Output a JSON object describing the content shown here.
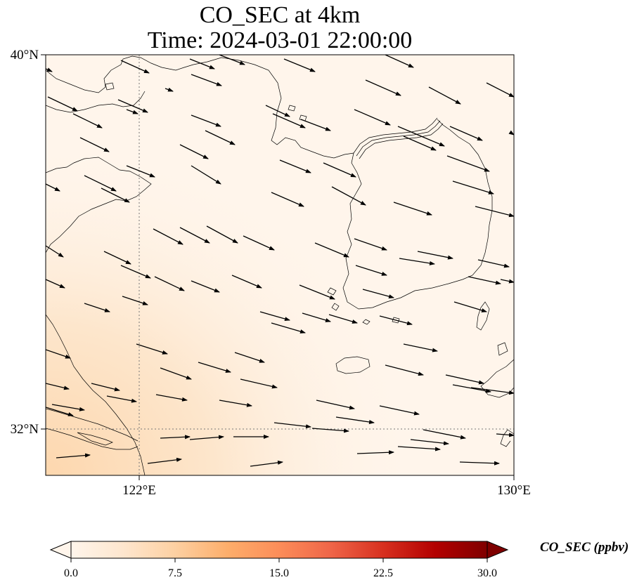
{
  "title": {
    "line1": "CO_SEC at 4km",
    "line2": "Time: 2024-03-01 22:00:00"
  },
  "map": {
    "lat_labels": [
      "40°N",
      "32°N"
    ],
    "lon_labels": [
      "122°E",
      "130°E"
    ],
    "extent": {
      "lon_min": 120,
      "lon_max": 130,
      "lat_min": 31,
      "lat_max": 40
    },
    "gridlines": {
      "lon": [
        122
      ],
      "lat": [
        32
      ],
      "style": "dotted"
    },
    "coastline_color": "#000000",
    "field_colors": [
      "#fff5eb",
      "#fde6cc",
      "#fdd7ae"
    ]
  },
  "colorbar": {
    "label": "CO_SEC (ppbv)",
    "ticks": [
      "0.0",
      "7.5",
      "15.0",
      "22.5",
      "30.0"
    ],
    "range": [
      0,
      30
    ],
    "cmap": [
      "#fff5eb",
      "#fee6ce",
      "#fdd0a2",
      "#fdae6b",
      "#fc8d59",
      "#ef6548",
      "#d7301f",
      "#b30000",
      "#7f0000"
    ],
    "extend": "both"
  }
}
